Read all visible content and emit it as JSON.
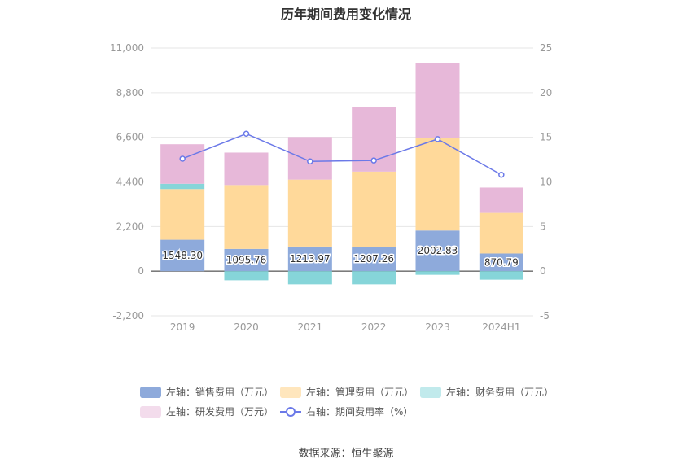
{
  "title": "历年期间费用变化情况",
  "source": "数据来源：恒生聚源",
  "colors": {
    "sales": "#8eaadb",
    "mgmt": "#ffd99a",
    "fin": "#86d5d9",
    "rd": "#e7b8d9",
    "rate": "#6b79e8"
  },
  "chart_data": {
    "type": "bar",
    "stacked": true,
    "categories": [
      "2019",
      "2020",
      "2021",
      "2022",
      "2023",
      "2024H1"
    ],
    "left_axis": {
      "ylim": [
        -2200,
        11000
      ],
      "ticks": [
        "-2,200",
        "0",
        "2,200",
        "4,400",
        "6,600",
        "8,800",
        "11,000"
      ]
    },
    "right_axis": {
      "ylim": [
        -5,
        25
      ],
      "ticks": [
        "-5",
        "0",
        "5",
        "10",
        "15",
        "20",
        "25"
      ]
    },
    "series": [
      {
        "key": "sales",
        "name": "左轴：销售费用（万元）",
        "values": [
          1548.3,
          1095.76,
          1213.97,
          1207.26,
          2002.83,
          870.79
        ]
      },
      {
        "key": "mgmt",
        "name": "左轴：管理费用（万元）",
        "values": [
          2500,
          3150,
          3300,
          3700,
          4550,
          2000
        ]
      },
      {
        "key": "fin",
        "name": "左轴：财务费用（万元）",
        "values": [
          260,
          -450,
          -650,
          -650,
          -180,
          -420
        ]
      },
      {
        "key": "rd",
        "name": "左轴：研发费用（万元）",
        "values": [
          1950,
          1600,
          2100,
          3200,
          3700,
          1250
        ]
      },
      {
        "key": "rate",
        "name": "右轴：期间费用率（%）",
        "axis": "right",
        "type": "line",
        "values": [
          12.6,
          15.4,
          12.3,
          12.4,
          14.8,
          10.8
        ]
      }
    ],
    "data_labels": [
      "1548.30",
      "1095.76",
      "1213.97",
      "1207.26",
      "2002.83",
      "870.79"
    ],
    "legend_position": "bottom",
    "grid": true
  }
}
